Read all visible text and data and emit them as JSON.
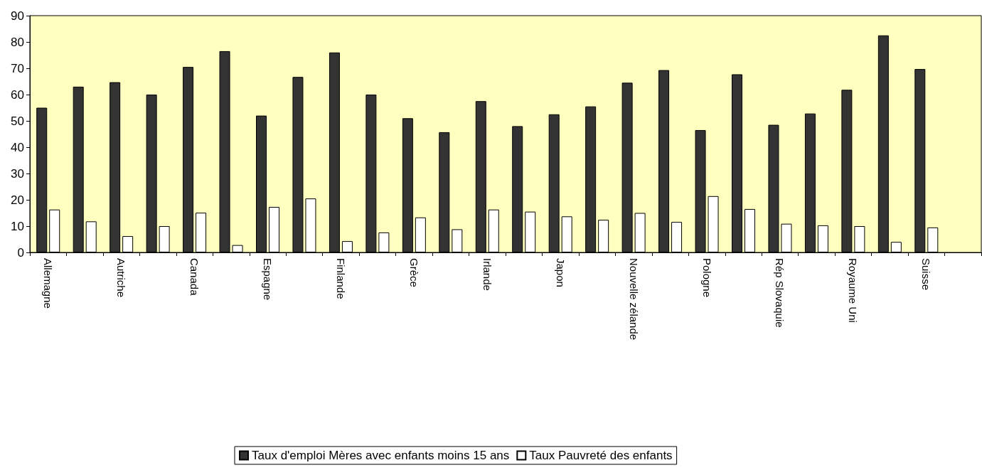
{
  "chart_data": {
    "type": "bar",
    "categories": [
      "Allemagne",
      null,
      "Autriche",
      null,
      "Canada",
      null,
      "Espagne",
      null,
      "Finlande",
      null,
      "Grèce",
      null,
      "Irlande",
      null,
      "Japon",
      null,
      "Nouvelle zélande",
      null,
      "Pologne",
      null,
      "Rép Slovaquie",
      null,
      "Royaume Uni",
      null,
      "Suisse",
      null
    ],
    "series": [
      {
        "name": "Taux d'emploi Mères avec enfants moins 15 ans",
        "color": "#333333",
        "values": [
          55,
          63,
          64.7,
          60,
          70.5,
          76.5,
          52,
          66.7,
          76,
          60,
          51,
          45.7,
          57.5,
          48,
          52.5,
          55.5,
          64.5,
          69.3,
          46.5,
          67.7,
          48.5,
          52.8,
          61.8,
          82.5,
          69.7,
          null
        ]
      },
      {
        "name": "Taux Pauvreté des enfants",
        "color": "#ffffff",
        "values": [
          16.3,
          11.8,
          6.2,
          10,
          15.1,
          2.8,
          17.3,
          20.5,
          4.3,
          7.6,
          13.3,
          8.8,
          16.3,
          15.5,
          13.7,
          12.4,
          15,
          11.6,
          21.4,
          16.5,
          10.9,
          10.3,
          10,
          4,
          9.5,
          null
        ]
      }
    ],
    "ylim": [
      0,
      90
    ],
    "yticks": [
      0,
      10,
      20,
      30,
      40,
      50,
      60,
      70,
      80,
      90
    ],
    "grid": false,
    "legend": "bottom"
  }
}
